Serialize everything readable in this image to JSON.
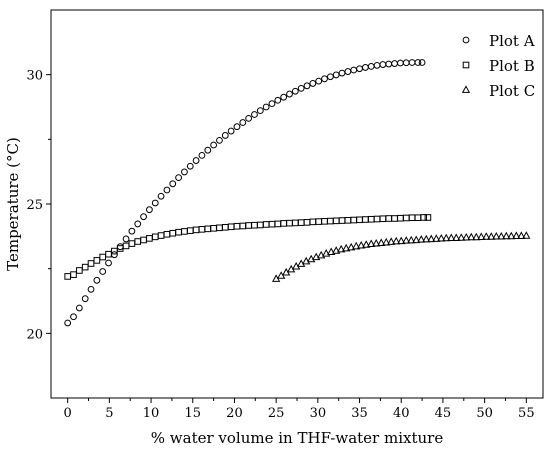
{
  "chart_data": {
    "type": "scatter",
    "xlabel": "% water volume in THF-water mixture",
    "ylabel": "Temperature (°C)",
    "xlim": [
      -2,
      57
    ],
    "ylim": [
      17.5,
      32.5
    ],
    "x_ticks": [
      0,
      5,
      10,
      15,
      20,
      25,
      30,
      35,
      40,
      45,
      50,
      55
    ],
    "x_tick_labels": [
      "0",
      "5",
      "10",
      "15",
      "20",
      "25",
      "30",
      "35",
      "40",
      "45",
      "50",
      "55"
    ],
    "y_ticks": [
      20,
      25,
      30
    ],
    "y_tick_labels": [
      "20",
      "25",
      "30"
    ],
    "legend_position": "top-right",
    "grid": false,
    "series": [
      {
        "name": "Plot A",
        "marker": "circle",
        "x": [
          0,
          0.7,
          1.4,
          2.1,
          2.8,
          3.5,
          4.2,
          4.9,
          5.6,
          6.3,
          7.0,
          7.7,
          8.4,
          9.1,
          9.8,
          10.5,
          11.2,
          11.9,
          12.6,
          13.3,
          14.0,
          14.7,
          15.4,
          16.1,
          16.8,
          17.5,
          18.2,
          18.9,
          19.6,
          20.3,
          21.0,
          21.7,
          22.4,
          23.1,
          23.8,
          24.5,
          25.2,
          25.9,
          26.6,
          27.3,
          28.0,
          28.7,
          29.4,
          30.1,
          30.8,
          31.5,
          32.2,
          32.9,
          33.6,
          34.3,
          35.0,
          35.7,
          36.4,
          37.1,
          37.8,
          38.5,
          39.2,
          39.9,
          40.6,
          41.3,
          42.0,
          42.5
        ],
        "y": [
          20.4,
          20.64,
          20.98,
          21.34,
          21.7,
          22.05,
          22.39,
          22.72,
          23.04,
          23.35,
          23.65,
          23.95,
          24.23,
          24.51,
          24.78,
          25.04,
          25.3,
          25.54,
          25.78,
          26.02,
          26.24,
          26.46,
          26.68,
          26.88,
          27.08,
          27.28,
          27.46,
          27.65,
          27.82,
          27.99,
          28.15,
          28.31,
          28.46,
          28.61,
          28.75,
          28.88,
          29.01,
          29.13,
          29.25,
          29.36,
          29.47,
          29.57,
          29.66,
          29.75,
          29.84,
          29.92,
          29.99,
          30.06,
          30.12,
          30.18,
          30.23,
          30.28,
          30.32,
          30.36,
          30.39,
          30.41,
          30.43,
          30.45,
          30.46,
          30.47,
          30.47,
          30.47
        ]
      },
      {
        "name": "Plot B",
        "marker": "square",
        "x": [
          0,
          0.7,
          1.4,
          2.1,
          2.8,
          3.5,
          4.2,
          4.9,
          5.6,
          6.3,
          7.0,
          7.7,
          8.4,
          9.1,
          9.8,
          10.5,
          11.2,
          11.9,
          12.6,
          13.3,
          14.0,
          14.7,
          15.4,
          16.1,
          16.8,
          17.5,
          18.2,
          18.9,
          19.6,
          20.3,
          21.0,
          21.7,
          22.4,
          23.1,
          23.8,
          24.5,
          25.2,
          25.9,
          26.6,
          27.3,
          28.0,
          28.7,
          29.4,
          30.1,
          30.8,
          31.5,
          32.2,
          32.9,
          33.6,
          34.3,
          35.0,
          35.7,
          36.4,
          37.1,
          37.8,
          38.5,
          39.2,
          39.9,
          40.6,
          41.3,
          42.0,
          42.7,
          43.2
        ],
        "y": [
          22.2,
          22.27,
          22.43,
          22.56,
          22.7,
          22.82,
          22.95,
          23.06,
          23.18,
          23.28,
          23.38,
          23.47,
          23.55,
          23.61,
          23.67,
          23.73,
          23.78,
          23.83,
          23.87,
          23.91,
          23.94,
          23.97,
          24.0,
          24.02,
          24.04,
          24.06,
          24.08,
          24.1,
          24.12,
          24.14,
          24.15,
          24.17,
          24.18,
          24.19,
          24.21,
          24.22,
          24.23,
          24.25,
          24.26,
          24.27,
          24.28,
          24.29,
          24.31,
          24.32,
          24.33,
          24.34,
          24.35,
          24.36,
          24.37,
          24.38,
          24.39,
          24.4,
          24.41,
          24.42,
          24.43,
          24.44,
          24.44,
          24.45,
          24.46,
          24.47,
          24.47,
          24.48,
          24.48
        ]
      },
      {
        "name": "Plot C",
        "marker": "triangle",
        "x": [
          25.0,
          25.6,
          26.2,
          26.8,
          27.4,
          28.0,
          28.6,
          29.2,
          29.8,
          30.4,
          31.0,
          31.6,
          32.2,
          32.8,
          33.4,
          34.0,
          34.6,
          35.2,
          35.8,
          36.4,
          37.0,
          37.6,
          38.2,
          38.8,
          39.4,
          40.0,
          40.6,
          41.2,
          41.8,
          42.4,
          43.0,
          43.6,
          44.2,
          44.8,
          45.4,
          46.0,
          46.6,
          47.2,
          47.8,
          48.4,
          49.0,
          49.6,
          50.2,
          50.8,
          51.4,
          52.0,
          52.6,
          53.2,
          53.8,
          54.4,
          55.0
        ],
        "y": [
          22.1,
          22.22,
          22.35,
          22.47,
          22.58,
          22.68,
          22.78,
          22.86,
          22.94,
          23.01,
          23.08,
          23.14,
          23.19,
          23.24,
          23.28,
          23.32,
          23.36,
          23.39,
          23.42,
          23.45,
          23.47,
          23.49,
          23.51,
          23.53,
          23.55,
          23.56,
          23.58,
          23.59,
          23.6,
          23.62,
          23.63,
          23.64,
          23.65,
          23.66,
          23.67,
          23.68,
          23.68,
          23.69,
          23.7,
          23.71,
          23.71,
          23.72,
          23.73,
          23.73,
          23.74,
          23.74,
          23.75,
          23.75,
          23.76,
          23.76,
          23.77
        ]
      }
    ]
  }
}
